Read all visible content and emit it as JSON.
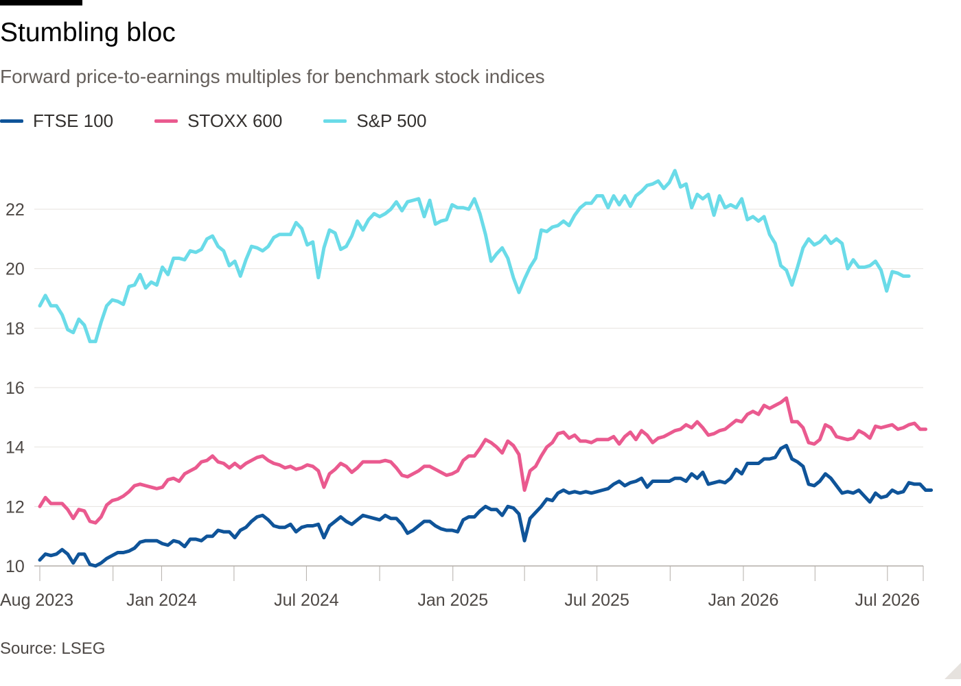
{
  "title": "Stumbling bloc",
  "subtitle": "Forward price-to-earnings multiples for benchmark stock indices",
  "source": "Source: LSEG",
  "colors": {
    "ftse": "#0f5499",
    "stoxx": "#ea5a8f",
    "sp": "#6adbe8",
    "grid": "#e6e2de",
    "axis": "#b3aea9"
  },
  "chart_data": {
    "type": "line",
    "title": "Stumbling bloc",
    "subtitle": "Forward price-to-earnings multiples for benchmark stock indices",
    "xlabel": "",
    "ylabel": "",
    "x_unit": "weekly",
    "x_start": "2023-08-01",
    "xlim": [
      "2023-08-01",
      "2026-08-15"
    ],
    "ylim": [
      10,
      23.5
    ],
    "y_ticks": [
      10,
      12,
      14,
      16,
      18,
      20,
      22
    ],
    "x_tick_labels": [
      {
        "date": "2023-08-01",
        "label": "Aug 2023"
      },
      {
        "date": "2024-01-01",
        "label": "Jan 2024"
      },
      {
        "date": "2024-07-01",
        "label": "Jul 2024"
      },
      {
        "date": "2025-01-01",
        "label": "Jan 2025"
      },
      {
        "date": "2025-07-01",
        "label": "Jul 2025"
      },
      {
        "date": "2026-01-01",
        "label": "Jan 2026"
      },
      {
        "date": "2026-07-01",
        "label": "Jul 2026"
      }
    ],
    "x_minor_ticks": [
      "2023-08-01",
      "2023-11-01",
      "2024-01-01",
      "2024-04-01",
      "2024-07-01",
      "2024-10-01",
      "2025-01-01",
      "2025-04-01",
      "2025-07-01",
      "2025-10-01",
      "2026-01-01",
      "2026-04-01",
      "2026-07-01",
      "2026-08-15"
    ],
    "grid": true,
    "legend_position": "top-left",
    "series": [
      {
        "name": "FTSE 100",
        "color": "#0f5499",
        "values": [
          10.2,
          10.4,
          10.35,
          10.4,
          10.55,
          10.4,
          10.1,
          10.4,
          10.4,
          10.05,
          10.0,
          10.1,
          10.25,
          10.35,
          10.45,
          10.45,
          10.5,
          10.6,
          10.8,
          10.85,
          10.85,
          10.85,
          10.75,
          10.7,
          10.85,
          10.8,
          10.65,
          10.9,
          10.9,
          10.85,
          11.0,
          11.0,
          11.2,
          11.15,
          11.15,
          10.95,
          11.2,
          11.3,
          11.5,
          11.65,
          11.7,
          11.55,
          11.35,
          11.3,
          11.3,
          11.4,
          11.15,
          11.3,
          11.35,
          11.35,
          11.4,
          10.95,
          11.35,
          11.5,
          11.65,
          11.5,
          11.4,
          11.55,
          11.7,
          11.65,
          11.6,
          11.55,
          11.7,
          11.6,
          11.6,
          11.4,
          11.1,
          11.2,
          11.35,
          11.5,
          11.5,
          11.35,
          11.25,
          11.2,
          11.2,
          11.15,
          11.55,
          11.65,
          11.65,
          11.85,
          12.0,
          11.9,
          11.9,
          11.7,
          12.0,
          11.95,
          11.75,
          10.85,
          11.6,
          11.8,
          12.0,
          12.25,
          12.2,
          12.45,
          12.55,
          12.45,
          12.5,
          12.45,
          12.5,
          12.45,
          12.5,
          12.55,
          12.6,
          12.75,
          12.85,
          12.7,
          12.8,
          12.85,
          12.95,
          12.65,
          12.85,
          12.85,
          12.85,
          12.85,
          12.95,
          12.95,
          12.85,
          13.1,
          12.95,
          13.15,
          12.75,
          12.8,
          12.85,
          12.8,
          12.95,
          13.25,
          13.1,
          13.45,
          13.45,
          13.45,
          13.6,
          13.6,
          13.65,
          13.95,
          14.05,
          13.6,
          13.5,
          13.35,
          12.75,
          12.7,
          12.85,
          13.1,
          12.95,
          12.7,
          12.45,
          12.5,
          12.45,
          12.55,
          12.35,
          12.15,
          12.45,
          12.3,
          12.35,
          12.55,
          12.45,
          12.5,
          12.8,
          12.75,
          12.75,
          12.55,
          12.55
        ]
      },
      {
        "name": "STOXX 600",
        "color": "#ea5a8f",
        "values": [
          12.0,
          12.3,
          12.1,
          12.1,
          12.1,
          11.9,
          11.6,
          11.9,
          11.85,
          11.5,
          11.45,
          11.65,
          12.05,
          12.2,
          12.25,
          12.35,
          12.5,
          12.7,
          12.75,
          12.7,
          12.65,
          12.6,
          12.65,
          12.9,
          12.95,
          12.85,
          13.1,
          13.2,
          13.3,
          13.5,
          13.55,
          13.7,
          13.5,
          13.45,
          13.3,
          13.45,
          13.3,
          13.45,
          13.55,
          13.65,
          13.7,
          13.55,
          13.45,
          13.4,
          13.3,
          13.35,
          13.25,
          13.3,
          13.4,
          13.35,
          13.2,
          12.65,
          13.1,
          13.25,
          13.45,
          13.35,
          13.15,
          13.3,
          13.5,
          13.5,
          13.5,
          13.5,
          13.55,
          13.5,
          13.3,
          13.05,
          13.0,
          13.1,
          13.2,
          13.35,
          13.35,
          13.25,
          13.15,
          13.05,
          13.1,
          13.2,
          13.55,
          13.7,
          13.7,
          13.95,
          14.25,
          14.15,
          14.0,
          13.8,
          14.2,
          14.05,
          13.75,
          12.55,
          13.2,
          13.35,
          13.7,
          14.0,
          14.15,
          14.45,
          14.5,
          14.3,
          14.4,
          14.2,
          14.2,
          14.15,
          14.25,
          14.25,
          14.25,
          14.35,
          14.1,
          14.35,
          14.5,
          14.25,
          14.55,
          14.4,
          14.15,
          14.3,
          14.35,
          14.45,
          14.55,
          14.6,
          14.75,
          14.65,
          14.85,
          14.65,
          14.4,
          14.45,
          14.55,
          14.6,
          14.75,
          14.9,
          14.85,
          15.1,
          15.2,
          15.1,
          15.4,
          15.3,
          15.4,
          15.5,
          15.65,
          14.85,
          14.85,
          14.65,
          14.15,
          14.1,
          14.25,
          14.75,
          14.65,
          14.35,
          14.3,
          14.25,
          14.3,
          14.55,
          14.45,
          14.3,
          14.7,
          14.65,
          14.7,
          14.75,
          14.6,
          14.65,
          14.75,
          14.8,
          14.6,
          14.6
        ]
      },
      {
        "name": "S&P 500",
        "color": "#6adbe8",
        "values": [
          18.75,
          19.1,
          18.75,
          18.75,
          18.45,
          17.95,
          17.85,
          18.3,
          18.1,
          17.55,
          17.55,
          18.2,
          18.75,
          18.95,
          18.9,
          18.8,
          19.4,
          19.45,
          19.8,
          19.35,
          19.55,
          19.45,
          20.05,
          19.8,
          20.35,
          20.35,
          20.3,
          20.6,
          20.55,
          20.65,
          21.0,
          21.1,
          20.75,
          20.6,
          20.1,
          20.25,
          19.75,
          20.3,
          20.75,
          20.7,
          20.6,
          20.75,
          21.05,
          21.15,
          21.15,
          21.15,
          21.55,
          21.35,
          20.8,
          20.9,
          19.7,
          20.7,
          21.3,
          21.2,
          20.65,
          20.75,
          21.1,
          21.6,
          21.3,
          21.65,
          21.85,
          21.75,
          21.85,
          22.0,
          22.25,
          21.95,
          22.25,
          22.3,
          22.35,
          21.75,
          22.3,
          21.5,
          21.6,
          21.65,
          22.15,
          22.05,
          22.05,
          22.0,
          22.35,
          21.85,
          21.15,
          20.25,
          20.5,
          20.7,
          20.35,
          19.7,
          19.2,
          19.65,
          20.05,
          20.35,
          21.3,
          21.25,
          21.4,
          21.45,
          21.6,
          21.45,
          21.8,
          22.05,
          22.2,
          22.2,
          22.45,
          22.45,
          22.05,
          22.45,
          22.15,
          22.45,
          22.1,
          22.45,
          22.6,
          22.8,
          22.85,
          22.95,
          22.7,
          22.9,
          23.3,
          22.75,
          22.85,
          22.05,
          22.5,
          22.35,
          22.5,
          21.8,
          22.45,
          22.05,
          22.15,
          22.05,
          22.35,
          21.65,
          21.75,
          21.6,
          21.75,
          21.15,
          20.85,
          20.1,
          19.95,
          19.45,
          20.05,
          20.7,
          21.0,
          20.8,
          20.9,
          21.1,
          20.85,
          21.0,
          20.85,
          20.0,
          20.3,
          20.05,
          20.05,
          20.1,
          20.25,
          19.95,
          19.25,
          19.9,
          19.85,
          19.75,
          19.75
        ]
      }
    ]
  }
}
